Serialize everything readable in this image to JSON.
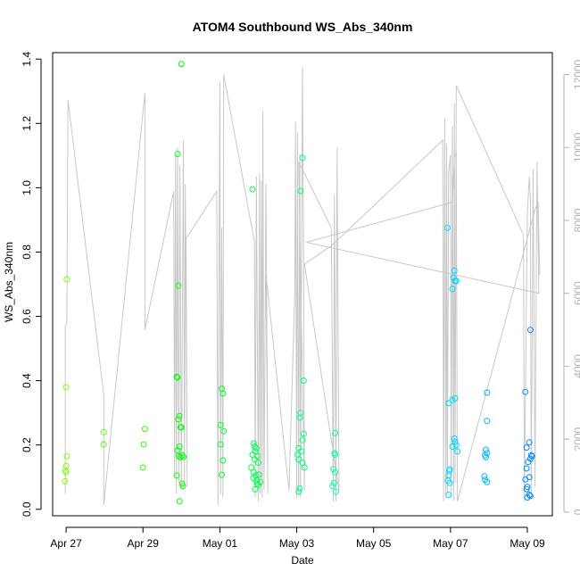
{
  "chart_data": {
    "type": "scatter",
    "title": "ATOM4 Southbound WS_Abs_340nm",
    "xlabel": "Date",
    "ylabel": "WS_Abs_340nm",
    "xlim": [
      -0.35,
      12.65
    ],
    "ylim": [
      -0.02,
      1.42
    ],
    "y2lim": [
      -100,
      12600
    ],
    "x_ticks": [
      {
        "value": 0,
        "label": "Apr 27"
      },
      {
        "value": 2,
        "label": "Apr 29"
      },
      {
        "value": 4,
        "label": "May 01"
      },
      {
        "value": 6,
        "label": "May 03"
      },
      {
        "value": 8,
        "label": "May 05"
      },
      {
        "value": 10,
        "label": "May 07"
      },
      {
        "value": 12,
        "label": "May 09"
      }
    ],
    "y_ticks": [
      {
        "value": 0.0,
        "label": "0.0"
      },
      {
        "value": 0.2,
        "label": "0.2"
      },
      {
        "value": 0.4,
        "label": "0.4"
      },
      {
        "value": 0.6,
        "label": "0.6"
      },
      {
        "value": 0.8,
        "label": "0.8"
      },
      {
        "value": 1.0,
        "label": "1.0"
      },
      {
        "value": 1.2,
        "label": "1.2"
      },
      {
        "value": 1.4,
        "label": "1.4"
      }
    ],
    "y2_ticks": [
      {
        "value": 0,
        "label": "0"
      },
      {
        "value": 2000,
        "label": "2000"
      },
      {
        "value": 4000,
        "label": "4000"
      },
      {
        "value": 6000,
        "label": "6000"
      },
      {
        "value": 8000,
        "label": "8000"
      },
      {
        "value": 10000,
        "label": "10000"
      },
      {
        "value": 12000,
        "label": "12000"
      }
    ],
    "altitude_color": "#c8c8c8",
    "altitude_trace": [
      [
        -0.02,
        500
      ],
      [
        -0.02,
        5100
      ],
      [
        0.02,
        5200
      ],
      [
        0.05,
        11300
      ],
      [
        0.98,
        3200
      ],
      [
        0.98,
        200
      ],
      [
        2.05,
        11500
      ],
      [
        2.05,
        5000
      ],
      [
        2.8,
        8800
      ],
      [
        2.82,
        1000
      ],
      [
        2.85,
        9800
      ],
      [
        2.87,
        500
      ],
      [
        2.9,
        10000
      ],
      [
        2.93,
        800
      ],
      [
        2.96,
        9500
      ],
      [
        3.0,
        600
      ],
      [
        3.05,
        10200
      ],
      [
        3.08,
        800
      ],
      [
        3.1,
        9000
      ],
      [
        3.15,
        700
      ],
      [
        3.12,
        7500
      ],
      [
        3.92,
        8800
      ],
      [
        3.95,
        200
      ],
      [
        4.0,
        11800
      ],
      [
        4.02,
        500
      ],
      [
        4.05,
        7800
      ],
      [
        4.08,
        400
      ],
      [
        4.1,
        12000
      ],
      [
        4.9,
        7400
      ],
      [
        4.92,
        400
      ],
      [
        4.95,
        9200
      ],
      [
        5.0,
        300
      ],
      [
        5.03,
        9300
      ],
      [
        5.05,
        500
      ],
      [
        5.08,
        9100
      ],
      [
        5.1,
        400
      ],
      [
        5.12,
        11000
      ],
      [
        5.15,
        600
      ],
      [
        5.2,
        9000
      ],
      [
        5.25,
        500
      ],
      [
        5.2,
        6500
      ],
      [
        5.8,
        600
      ],
      [
        5.95,
        6000
      ],
      [
        5.97,
        10700
      ],
      [
        6.0,
        400
      ],
      [
        6.02,
        10400
      ],
      [
        6.05,
        500
      ],
      [
        6.08,
        9800
      ],
      [
        6.1,
        400
      ],
      [
        6.15,
        12200
      ],
      [
        6.18,
        6800
      ],
      [
        6.2,
        600
      ],
      [
        6.05,
        9600
      ],
      [
        6.9,
        7800
      ],
      [
        6.95,
        300
      ],
      [
        6.98,
        8700
      ],
      [
        7.02,
        300
      ],
      [
        7.05,
        10000
      ],
      [
        7.1,
        600
      ],
      [
        6.2,
        6800
      ],
      [
        6.9,
        7300
      ],
      [
        9.8,
        10200
      ],
      [
        9.82,
        300
      ],
      [
        9.85,
        10800
      ],
      [
        9.88,
        400
      ],
      [
        9.9,
        10100
      ],
      [
        9.92,
        500
      ],
      [
        9.95,
        9300
      ],
      [
        10.0,
        9800
      ],
      [
        10.02,
        400
      ],
      [
        10.05,
        10600
      ],
      [
        10.08,
        300
      ],
      [
        10.1,
        11200
      ],
      [
        10.12,
        800
      ],
      [
        10.15,
        11700
      ],
      [
        11.9,
        7600
      ],
      [
        11.92,
        300
      ],
      [
        12.0,
        8200
      ],
      [
        12.05,
        9200
      ],
      [
        12.08,
        8600
      ],
      [
        12.1,
        500
      ],
      [
        12.15,
        9400
      ],
      [
        12.2,
        700
      ],
      [
        12.25,
        9600
      ],
      [
        12.3,
        6000
      ],
      [
        6.25,
        7400
      ],
      [
        10.05,
        8500
      ],
      [
        10.1,
        9700
      ],
      [
        10.15,
        9900
      ],
      [
        10.18,
        300
      ],
      [
        12.2,
        8300
      ],
      [
        12.28,
        8500
      ],
      [
        12.32,
        6500
      ]
    ],
    "points": [
      {
        "x": 0.02,
        "y": 0.715
      },
      {
        "x": 0.0,
        "y": 0.38
      },
      {
        "x": 0.02,
        "y": 0.165
      },
      {
        "x": 0.0,
        "y": 0.135
      },
      {
        "x": -0.02,
        "y": 0.12
      },
      {
        "x": 0.0,
        "y": 0.115
      },
      {
        "x": -0.03,
        "y": 0.087
      },
      {
        "x": 0.98,
        "y": 0.24
      },
      {
        "x": 0.98,
        "y": 0.202
      },
      {
        "x": 2.05,
        "y": 0.25
      },
      {
        "x": 2.02,
        "y": 0.202
      },
      {
        "x": 2.0,
        "y": 0.13
      },
      {
        "x": 2.9,
        "y": 1.105
      },
      {
        "x": 2.92,
        "y": 0.695
      },
      {
        "x": 2.88,
        "y": 0.412
      },
      {
        "x": 2.9,
        "y": 0.41
      },
      {
        "x": 3.0,
        "y": 1.385
      },
      {
        "x": 2.95,
        "y": 0.29
      },
      {
        "x": 2.92,
        "y": 0.28
      },
      {
        "x": 2.98,
        "y": 0.255
      },
      {
        "x": 3.0,
        "y": 0.255
      },
      {
        "x": 2.95,
        "y": 0.195
      },
      {
        "x": 2.9,
        "y": 0.183
      },
      {
        "x": 2.93,
        "y": 0.165
      },
      {
        "x": 2.97,
        "y": 0.162
      },
      {
        "x": 3.02,
        "y": 0.168
      },
      {
        "x": 3.05,
        "y": 0.163
      },
      {
        "x": 2.88,
        "y": 0.105
      },
      {
        "x": 3.02,
        "y": 0.08
      },
      {
        "x": 3.04,
        "y": 0.072
      },
      {
        "x": 2.95,
        "y": 0.025
      },
      {
        "x": 4.05,
        "y": 0.375
      },
      {
        "x": 4.08,
        "y": 0.36
      },
      {
        "x": 4.02,
        "y": 0.262
      },
      {
        "x": 4.1,
        "y": 0.243
      },
      {
        "x": 4.02,
        "y": 0.202
      },
      {
        "x": 4.08,
        "y": 0.152
      },
      {
        "x": 4.05,
        "y": 0.107
      },
      {
        "x": 4.85,
        "y": 0.995
      },
      {
        "x": 4.88,
        "y": 0.205
      },
      {
        "x": 4.9,
        "y": 0.195
      },
      {
        "x": 4.95,
        "y": 0.19
      },
      {
        "x": 4.92,
        "y": 0.18
      },
      {
        "x": 4.85,
        "y": 0.17
      },
      {
        "x": 4.98,
        "y": 0.165
      },
      {
        "x": 4.9,
        "y": 0.155
      },
      {
        "x": 5.0,
        "y": 0.145
      },
      {
        "x": 4.82,
        "y": 0.13
      },
      {
        "x": 4.88,
        "y": 0.115
      },
      {
        "x": 4.93,
        "y": 0.105
      },
      {
        "x": 5.02,
        "y": 0.108
      },
      {
        "x": 4.87,
        "y": 0.097
      },
      {
        "x": 4.95,
        "y": 0.09
      },
      {
        "x": 5.05,
        "y": 0.085
      },
      {
        "x": 4.97,
        "y": 0.08
      },
      {
        "x": 5.0,
        "y": 0.075
      },
      {
        "x": 4.92,
        "y": 0.062
      },
      {
        "x": 6.15,
        "y": 1.093
      },
      {
        "x": 6.1,
        "y": 0.99
      },
      {
        "x": 6.18,
        "y": 0.4
      },
      {
        "x": 6.1,
        "y": 0.3
      },
      {
        "x": 6.08,
        "y": 0.285
      },
      {
        "x": 6.18,
        "y": 0.235
      },
      {
        "x": 6.15,
        "y": 0.215
      },
      {
        "x": 6.05,
        "y": 0.19
      },
      {
        "x": 6.12,
        "y": 0.18
      },
      {
        "x": 6.02,
        "y": 0.17
      },
      {
        "x": 6.05,
        "y": 0.155
      },
      {
        "x": 6.15,
        "y": 0.145
      },
      {
        "x": 6.2,
        "y": 0.13
      },
      {
        "x": 6.08,
        "y": 0.065
      },
      {
        "x": 6.05,
        "y": 0.055
      },
      {
        "x": 7.0,
        "y": 0.237
      },
      {
        "x": 6.98,
        "y": 0.175
      },
      {
        "x": 7.0,
        "y": 0.17
      },
      {
        "x": 6.95,
        "y": 0.125
      },
      {
        "x": 7.0,
        "y": 0.115
      },
      {
        "x": 6.97,
        "y": 0.082
      },
      {
        "x": 6.93,
        "y": 0.072
      },
      {
        "x": 7.02,
        "y": 0.055
      },
      {
        "x": 9.92,
        "y": 0.875
      },
      {
        "x": 10.1,
        "y": 0.742
      },
      {
        "x": 10.08,
        "y": 0.72
      },
      {
        "x": 10.12,
        "y": 0.71
      },
      {
        "x": 10.15,
        "y": 0.71
      },
      {
        "x": 10.05,
        "y": 0.685
      },
      {
        "x": 10.12,
        "y": 0.345
      },
      {
        "x": 10.05,
        "y": 0.34
      },
      {
        "x": 9.95,
        "y": 0.33
      },
      {
        "x": 10.1,
        "y": 0.22
      },
      {
        "x": 10.12,
        "y": 0.21
      },
      {
        "x": 10.15,
        "y": 0.2
      },
      {
        "x": 10.18,
        "y": 0.18
      },
      {
        "x": 10.05,
        "y": 0.195
      },
      {
        "x": 9.98,
        "y": 0.125
      },
      {
        "x": 9.97,
        "y": 0.12
      },
      {
        "x": 9.95,
        "y": 0.105
      },
      {
        "x": 9.93,
        "y": 0.09
      },
      {
        "x": 9.98,
        "y": 0.082
      },
      {
        "x": 9.95,
        "y": 0.045
      },
      {
        "x": 10.95,
        "y": 0.363
      },
      {
        "x": 10.95,
        "y": 0.275
      },
      {
        "x": 10.92,
        "y": 0.185
      },
      {
        "x": 10.95,
        "y": 0.175
      },
      {
        "x": 10.9,
        "y": 0.168
      },
      {
        "x": 10.92,
        "y": 0.162
      },
      {
        "x": 10.88,
        "y": 0.103
      },
      {
        "x": 10.9,
        "y": 0.092
      },
      {
        "x": 10.95,
        "y": 0.085
      },
      {
        "x": 12.08,
        "y": 0.558
      },
      {
        "x": 11.95,
        "y": 0.365
      },
      {
        "x": 12.05,
        "y": 0.208
      },
      {
        "x": 11.98,
        "y": 0.192
      },
      {
        "x": 12.1,
        "y": 0.168
      },
      {
        "x": 12.12,
        "y": 0.165
      },
      {
        "x": 12.08,
        "y": 0.157
      },
      {
        "x": 12.02,
        "y": 0.147
      },
      {
        "x": 11.98,
        "y": 0.127
      },
      {
        "x": 12.05,
        "y": 0.1
      },
      {
        "x": 11.95,
        "y": 0.093
      },
      {
        "x": 12.0,
        "y": 0.07
      },
      {
        "x": 11.98,
        "y": 0.063
      },
      {
        "x": 12.05,
        "y": 0.045
      },
      {
        "x": 12.08,
        "y": 0.042
      },
      {
        "x": 12.0,
        "y": 0.037
      }
    ]
  }
}
